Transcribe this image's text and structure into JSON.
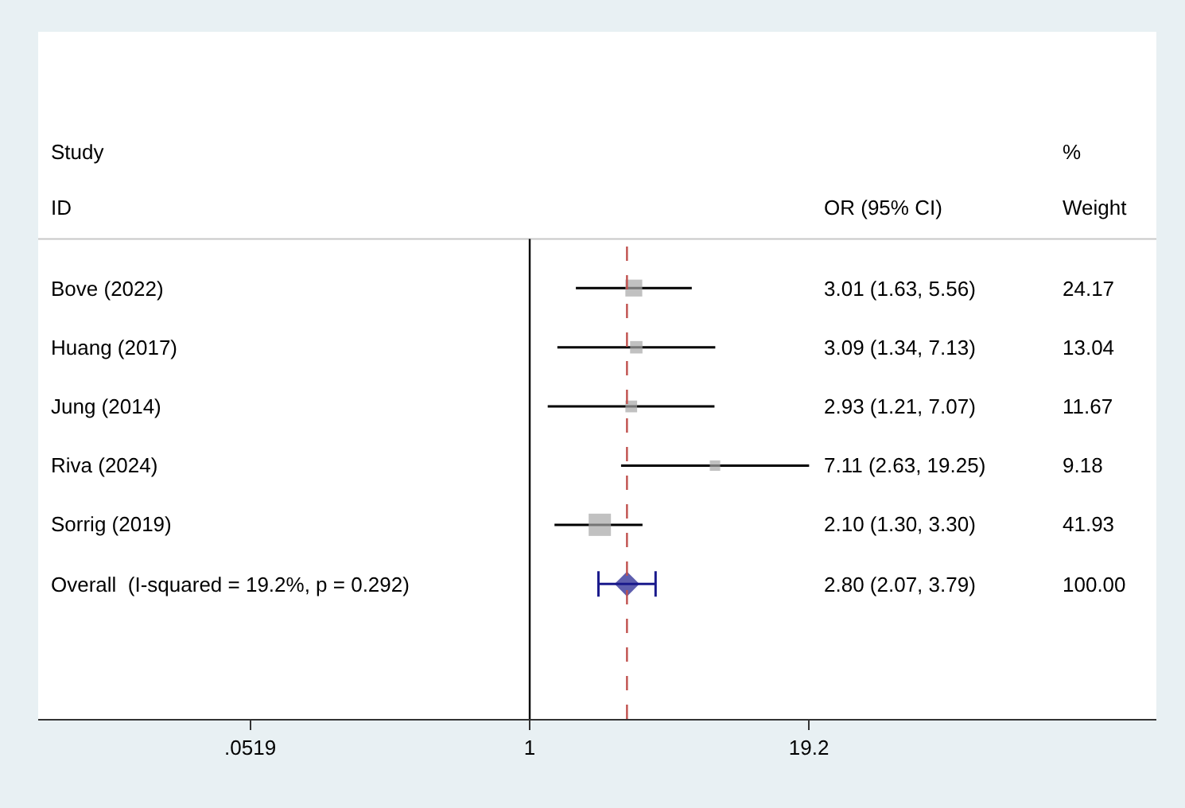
{
  "chart_data": {
    "type": "scatter",
    "orientation": "horizontal",
    "categories": [
      "Bove (2022)",
      "Huang (2017)",
      "Jung (2014)",
      "Riva (2024)",
      "Sorrig (2019)",
      "Overall  (I-squared = 19.2%, p = 0.292)"
    ],
    "series": [
      {
        "type": "scatter",
        "marker": "square",
        "color": "#a6a6a6",
        "values": [
          3.01,
          3.09,
          2.93,
          7.11,
          2.1,
          null
        ],
        "errors": [
          [
            1.63,
            5.56
          ],
          [
            1.34,
            7.13
          ],
          [
            1.21,
            7.07
          ],
          [
            2.63,
            19.25
          ],
          [
            1.3,
            3.3
          ],
          null
        ],
        "sizes": [
          0.576,
          0.311,
          0.278,
          0.219,
          1,
          null
        ]
      },
      {
        "type": "scatter",
        "marker": "diamond",
        "color": "#1a1a8c",
        "values": [
          null,
          null,
          null,
          null,
          null,
          2.8
        ],
        "errors": [
          null,
          null,
          null,
          null,
          null,
          [
            2.07,
            3.79
          ]
        ]
      }
    ],
    "log": "x",
    "xlim": [
      0.0055,
      760
    ],
    "xticks": [
      {
        "value": 0.0519,
        "label": ".0519"
      },
      {
        "value": 1,
        "label": "1"
      },
      {
        "value": 19.2,
        "label": "19.2"
      }
    ],
    "ref_lines": [
      {
        "axis": "x",
        "value": 1,
        "color": "#000000",
        "line_style": "solid"
      },
      {
        "axis": "x",
        "value": 2.8,
        "color": "#c0504d",
        "line_style": "dashed"
      }
    ],
    "annotations": [
      "Study",
      "ID",
      "OR (95% CI)",
      "%",
      "Weight",
      "3.01 (1.63, 5.56)",
      "3.09 (1.34, 7.13)",
      "2.93 (1.21, 7.07)",
      "7.11 (2.63, 19.25)",
      "2.10 (1.30, 3.30)",
      "2.80 (2.07, 3.79)",
      "24.17",
      "13.04",
      "11.67",
      "9.18",
      "41.93",
      "100.00"
    ],
    "grid": false
  }
}
